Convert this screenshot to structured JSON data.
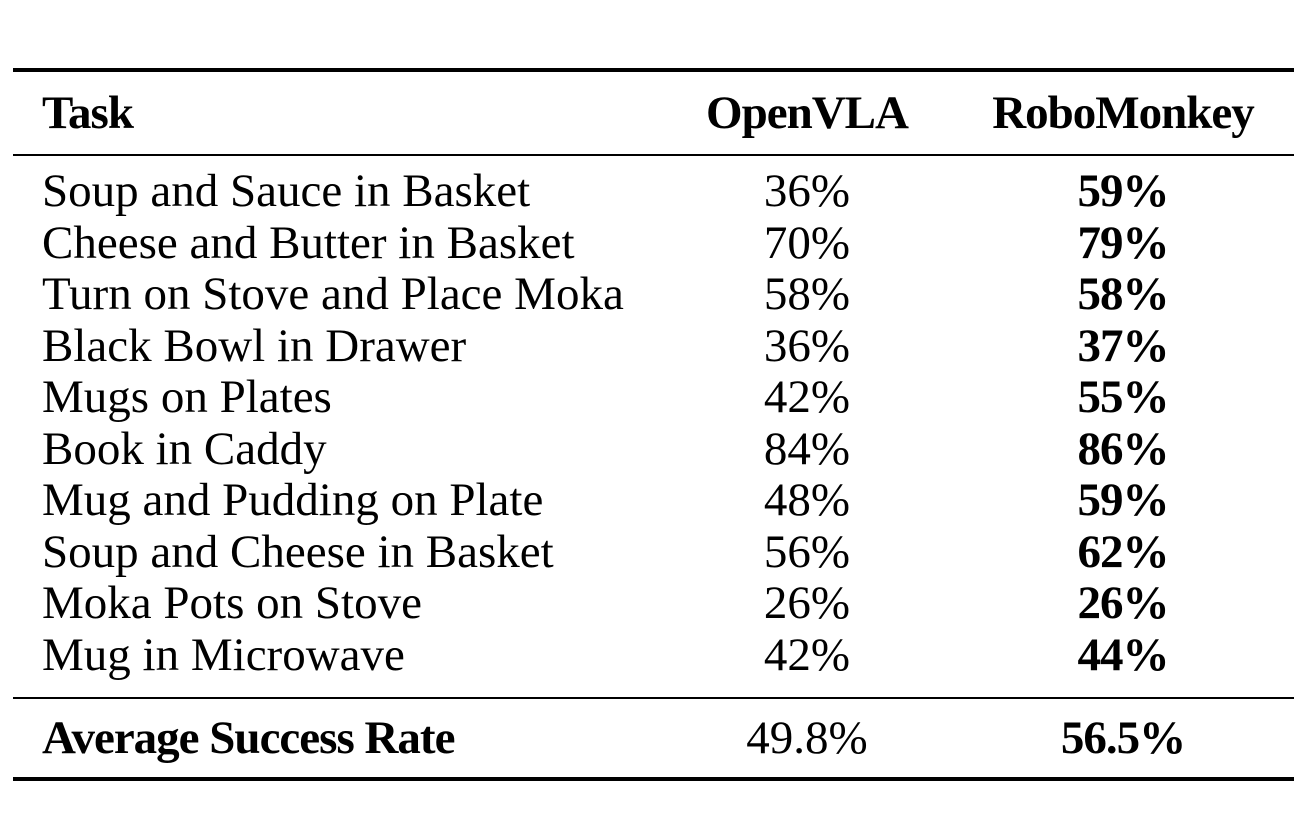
{
  "table": {
    "headers": {
      "task": "Task",
      "openvla": "OpenVLA",
      "robomonkey": "RoboMonkey"
    },
    "rows": [
      {
        "task": "Soup and Sauce in Basket",
        "openvla": "36%",
        "robomonkey": "59%"
      },
      {
        "task": "Cheese and Butter in Basket",
        "openvla": "70%",
        "robomonkey": "79%"
      },
      {
        "task": "Turn on Stove and Place Moka",
        "openvla": "58%",
        "robomonkey": "58%"
      },
      {
        "task": "Black Bowl in Drawer",
        "openvla": "36%",
        "robomonkey": "37%"
      },
      {
        "task": "Mugs on Plates",
        "openvla": "42%",
        "robomonkey": "55%"
      },
      {
        "task": "Book in Caddy",
        "openvla": "84%",
        "robomonkey": "86%"
      },
      {
        "task": "Mug and Pudding on Plate",
        "openvla": "48%",
        "robomonkey": "59%"
      },
      {
        "task": "Soup and Cheese in Basket",
        "openvla": "56%",
        "robomonkey": "62%"
      },
      {
        "task": "Moka Pots on Stove",
        "openvla": "26%",
        "robomonkey": "26%"
      },
      {
        "task": "Mug in Microwave",
        "openvla": "42%",
        "robomonkey": "44%"
      }
    ],
    "average": {
      "label": "Average Success Rate",
      "openvla": "49.8%",
      "robomonkey": "56.5%"
    }
  }
}
